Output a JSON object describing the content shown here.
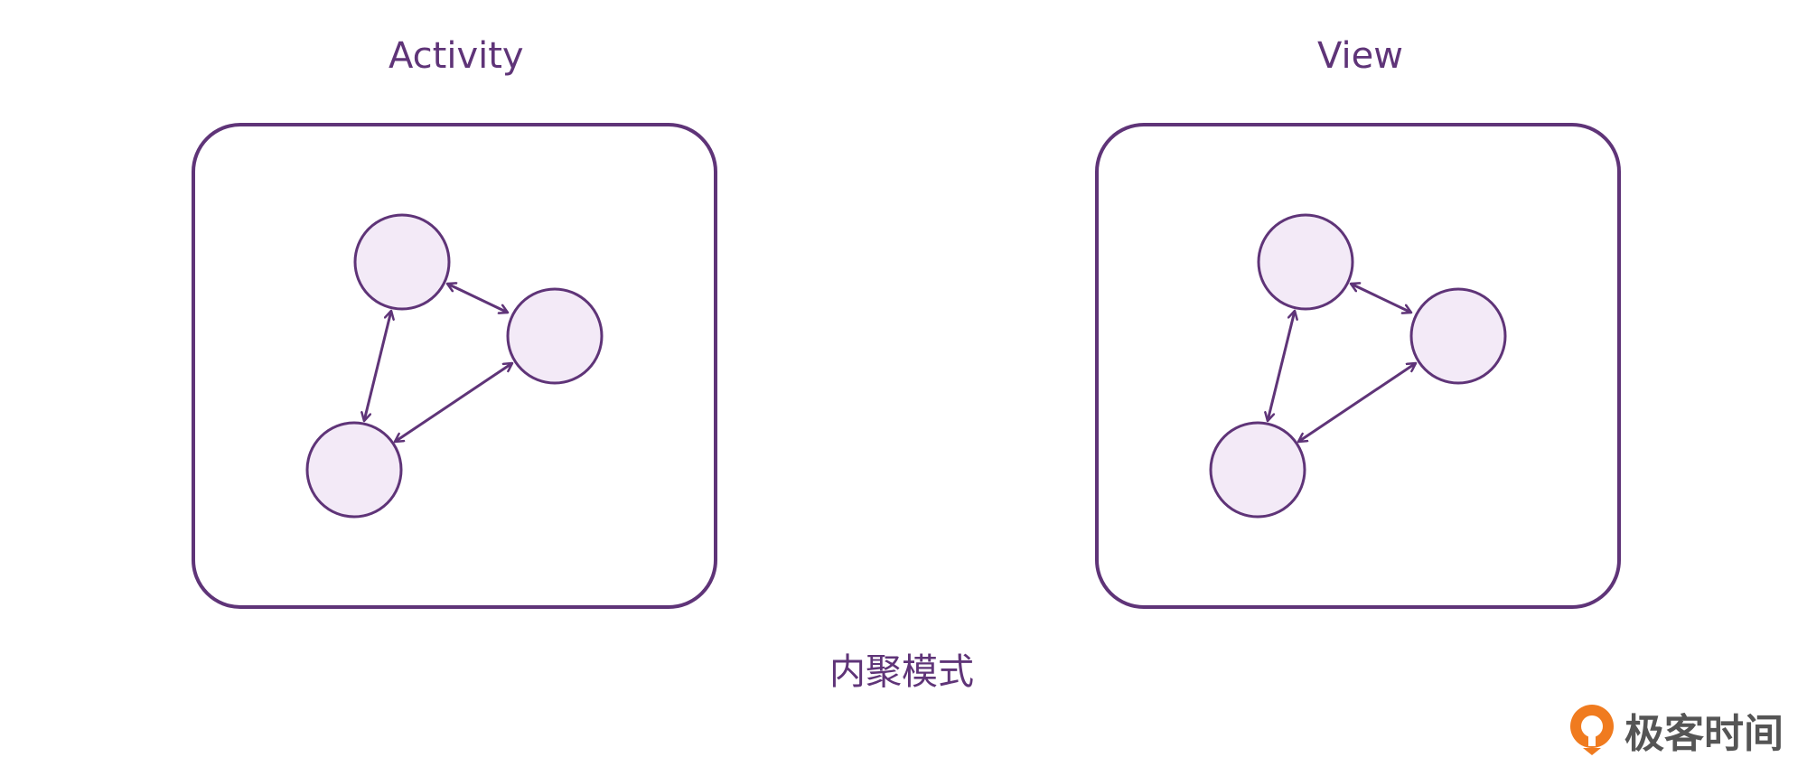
{
  "diagram": {
    "panels": [
      {
        "title": "Activity"
      },
      {
        "title": "View"
      }
    ],
    "caption": "内聚模式"
  },
  "logo": {
    "text": "极客时间",
    "icon": "geektime-logo-icon"
  },
  "colors": {
    "stroke": "#5f3478",
    "node_fill": "#f3eaf7",
    "logo_orange": "#f07b1f"
  }
}
